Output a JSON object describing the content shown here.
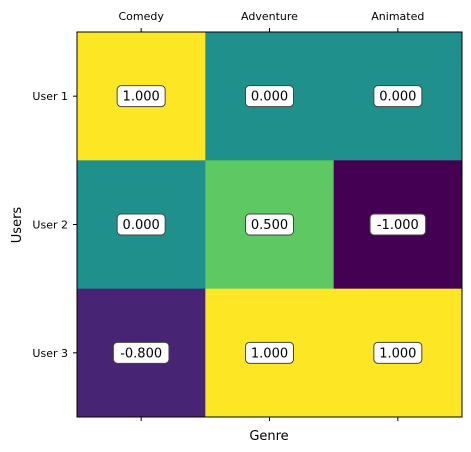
{
  "chart_data": {
    "type": "heatmap",
    "title": "",
    "xlabel": "Genre",
    "ylabel": "Users",
    "x_categories": [
      "Comedy",
      "Adventure",
      "Animated"
    ],
    "y_categories": [
      "User 1",
      "User 2",
      "User 3"
    ],
    "values": [
      [
        1.0,
        0.0,
        0.0
      ],
      [
        0.0,
        0.5,
        -1.0
      ],
      [
        -0.8,
        1.0,
        1.0
      ]
    ],
    "value_labels": [
      [
        "1.000",
        "0.000",
        "0.000"
      ],
      [
        "0.000",
        "0.500",
        "-1.000"
      ],
      [
        "-0.800",
        "1.000",
        "1.000"
      ]
    ],
    "value_range": [
      -1.0,
      1.0
    ],
    "colormap": "viridis",
    "x_tick_position": "top",
    "grid": false
  }
}
